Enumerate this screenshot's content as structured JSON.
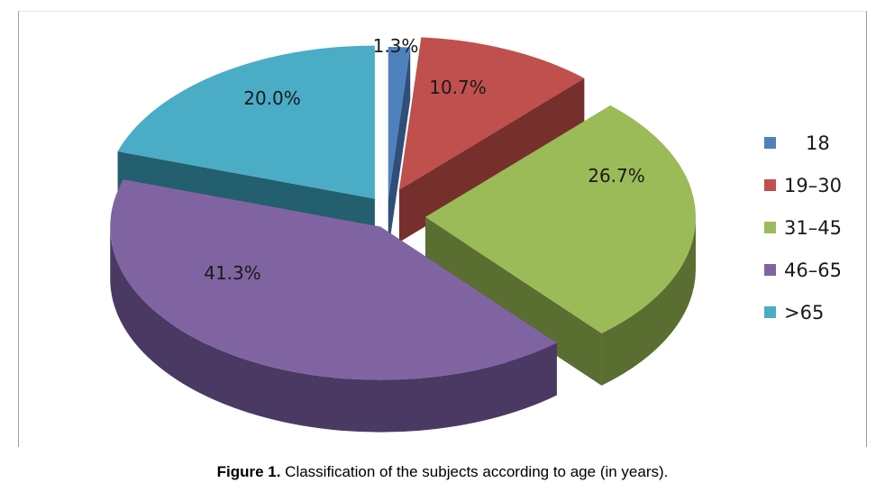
{
  "chart_data": {
    "type": "pie",
    "categories": [
      "18",
      "19–30",
      "31–45",
      "46–65",
      ">65"
    ],
    "values": [
      1.3,
      10.7,
      26.7,
      41.3,
      20.0
    ],
    "labels": [
      "1.3%",
      "10.7%",
      "26.7%",
      "41.3%",
      "20.0%"
    ],
    "colors": [
      "#4f81bd",
      "#c0504d",
      "#9bbb59",
      "#8064a2",
      "#4bacc6"
    ],
    "dark_colors": [
      "#2e4f78",
      "#772f2d",
      "#5a6e31",
      "#4a3a63",
      "#235f6e"
    ],
    "legend_position": "right",
    "exploded": true,
    "three_d": true
  },
  "caption": {
    "figure_label": "Figure 1.",
    "text": " Classification of the subjects according to age (in years)."
  }
}
